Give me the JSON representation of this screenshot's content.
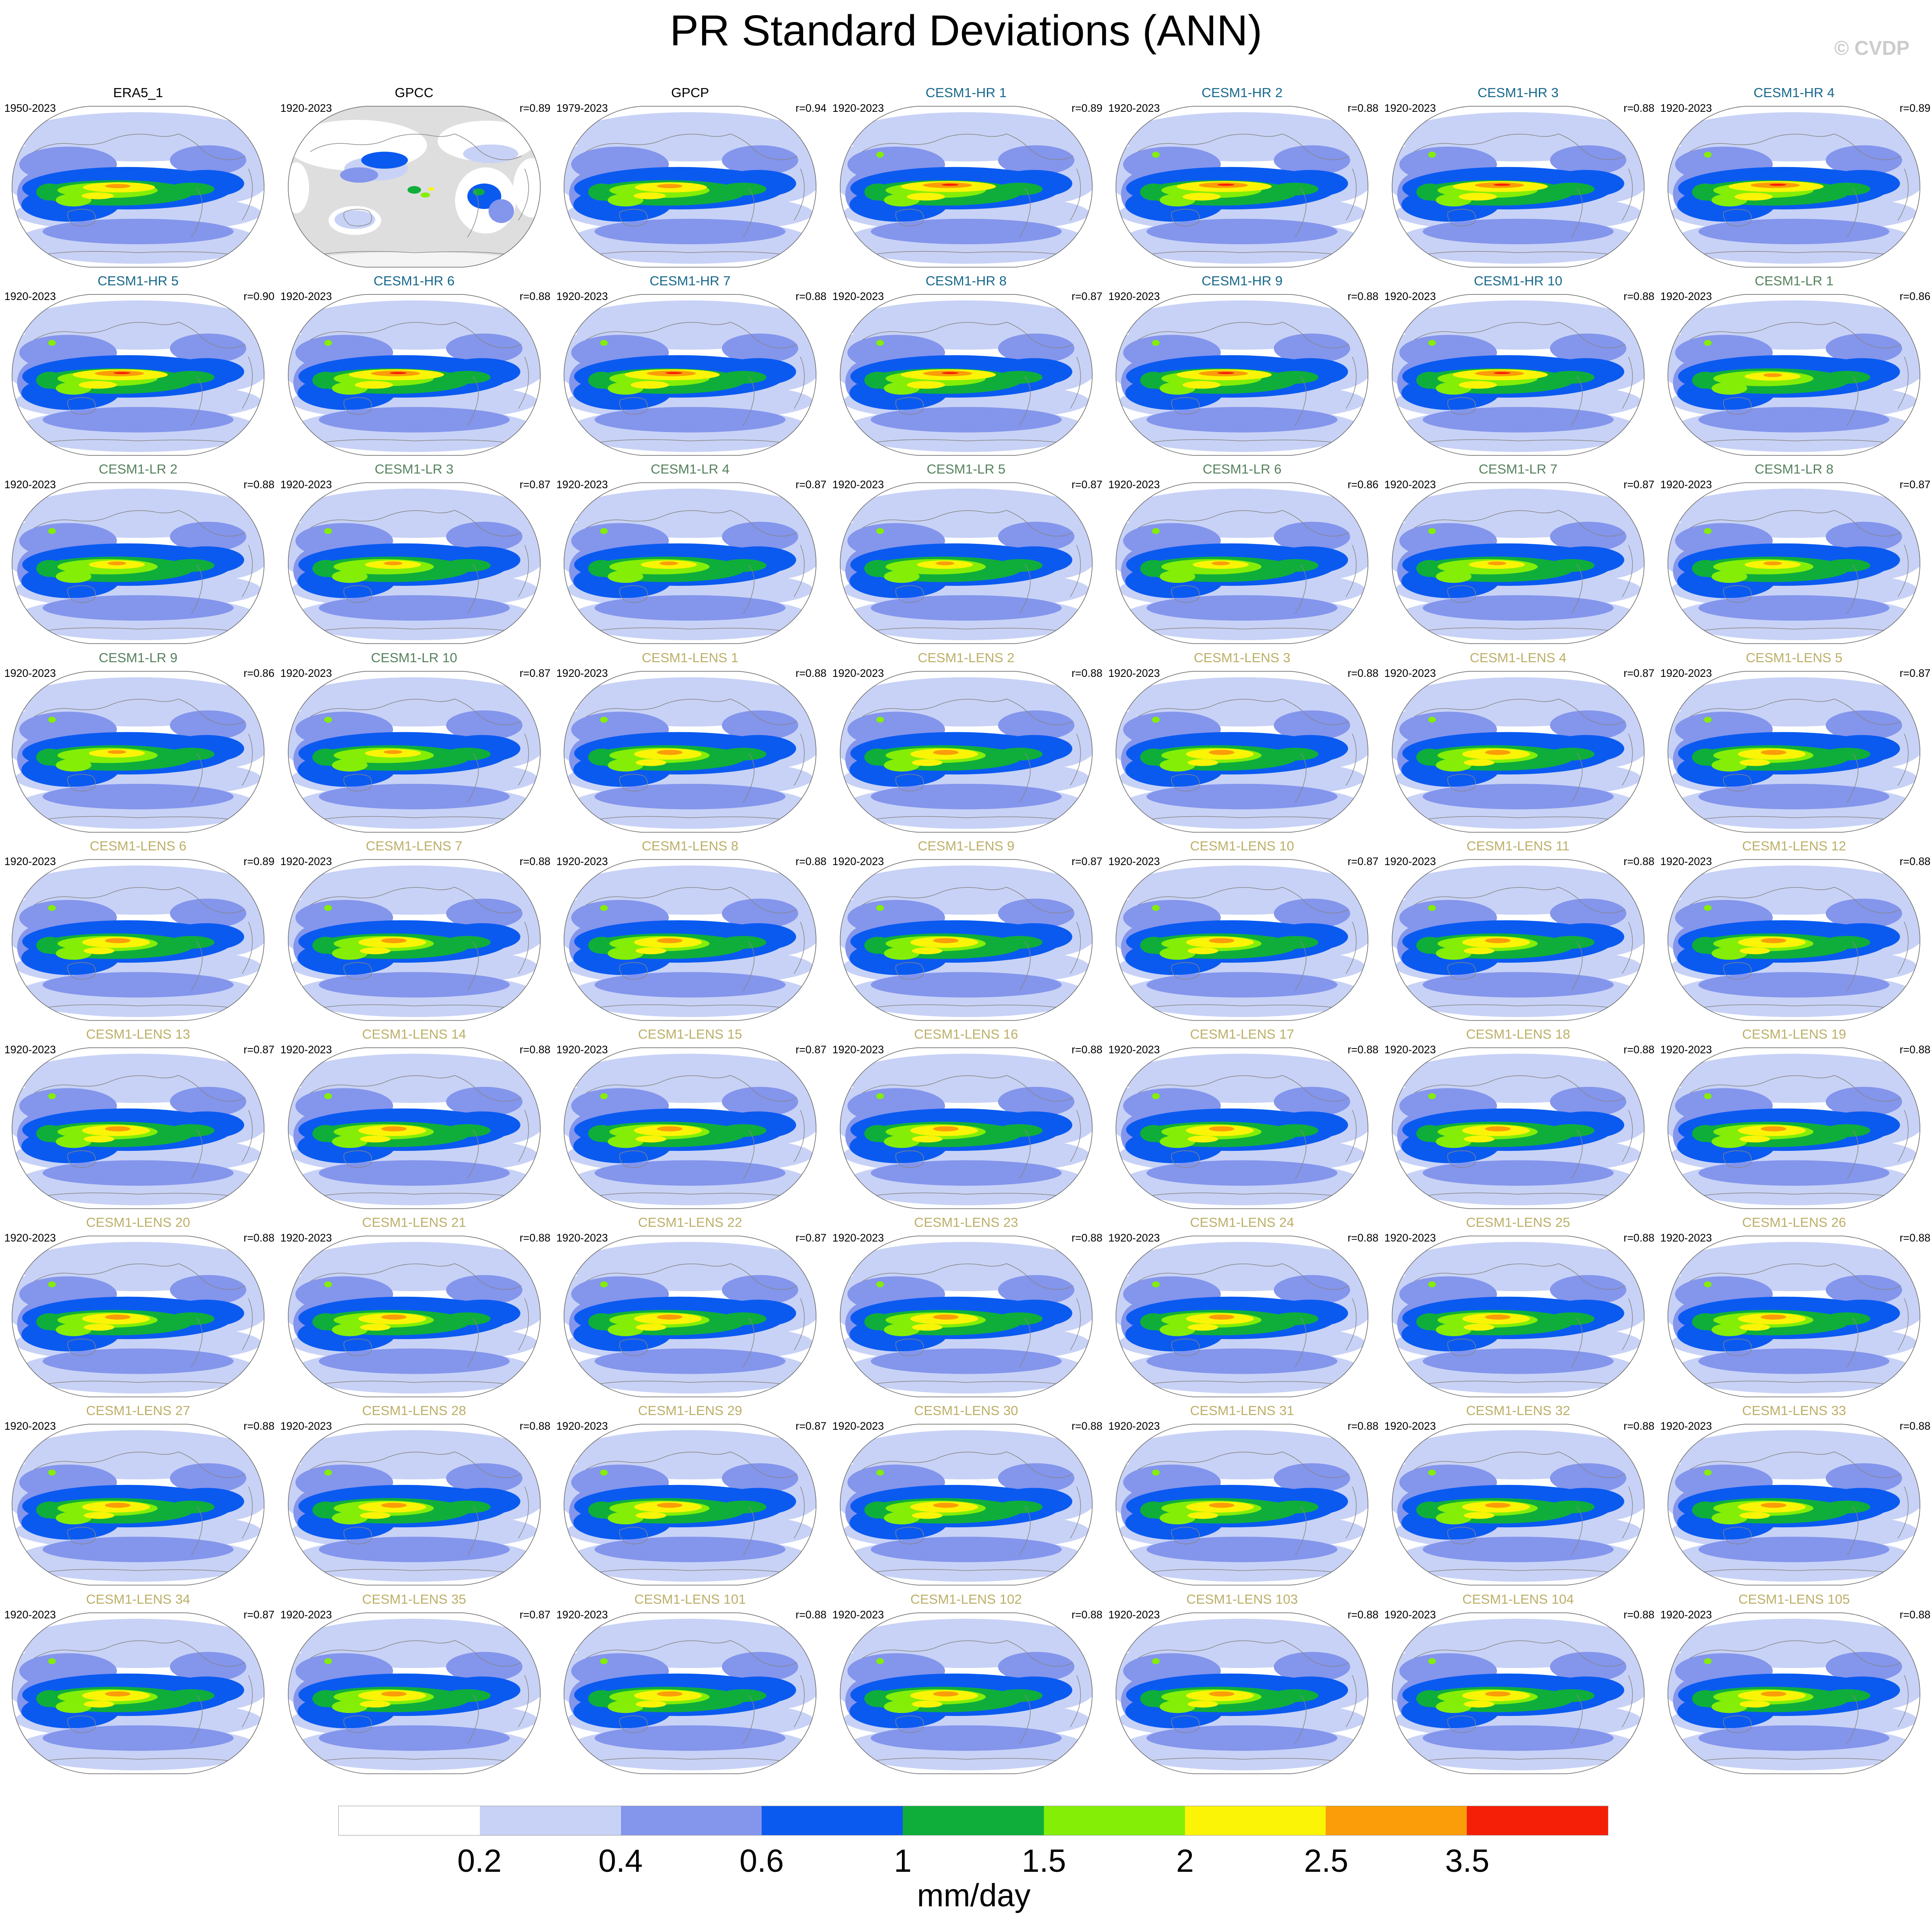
{
  "page": {
    "title": "PR Standard Deviations (ANN)",
    "watermark": "© CVDP"
  },
  "colorbar": {
    "unit": "mm/day",
    "tick_labels": [
      "0.2",
      "0.4",
      "0.6",
      "1",
      "1.5",
      "2",
      "2.5",
      "3.5"
    ],
    "colors": [
      "#FFFFFF",
      "#C8D2F6",
      "#8495EC",
      "#0A5AF0",
      "#0FAE3B",
      "#84EE07",
      "#FCF407",
      "#FB9D09",
      "#F51E07"
    ]
  },
  "title_colors": {
    "obs": "#000000",
    "gpcc": "#000000",
    "hr": "#17688C",
    "lr": "#55815D",
    "lens": "#BCAF68"
  },
  "chart_data": {
    "type": "heatmap",
    "title": "PR Standard Deviations (ANN)",
    "unit": "mm/day",
    "contour_levels_mm_day": [
      0.2,
      0.4,
      0.6,
      1,
      1.5,
      2,
      2.5,
      3.5
    ],
    "palette": [
      "#FFFFFF",
      "#C8D2F6",
      "#8495EC",
      "#0A5AF0",
      "#0FAE3B",
      "#84EE07",
      "#FCF407",
      "#FB9D09",
      "#F51E07"
    ],
    "legend_position": "bottom",
    "grid_rows": 9,
    "grid_cols": 7,
    "panels": [
      {
        "name": "ERA5_1",
        "period": "1950-2023",
        "r": null,
        "r_label": "",
        "style": "obs"
      },
      {
        "name": "GPCC",
        "period": "1920-2023",
        "r": 0.89,
        "r_label": "r=0.89",
        "style": "gpcc"
      },
      {
        "name": "GPCP",
        "period": "1979-2023",
        "r": 0.94,
        "r_label": "r=0.94",
        "style": "obs"
      },
      {
        "name": "CESM1-HR 1",
        "period": "1920-2023",
        "r": 0.89,
        "r_label": "r=0.89",
        "style": "hr"
      },
      {
        "name": "CESM1-HR 2",
        "period": "1920-2023",
        "r": 0.88,
        "r_label": "r=0.88",
        "style": "hr"
      },
      {
        "name": "CESM1-HR 3",
        "period": "1920-2023",
        "r": 0.88,
        "r_label": "r=0.88",
        "style": "hr"
      },
      {
        "name": "CESM1-HR 4",
        "period": "1920-2023",
        "r": 0.89,
        "r_label": "r=0.89",
        "style": "hr"
      },
      {
        "name": "CESM1-HR 5",
        "period": "1920-2023",
        "r": 0.9,
        "r_label": "r=0.90",
        "style": "hr"
      },
      {
        "name": "CESM1-HR 6",
        "period": "1920-2023",
        "r": 0.88,
        "r_label": "r=0.88",
        "style": "hr"
      },
      {
        "name": "CESM1-HR 7",
        "period": "1920-2023",
        "r": 0.88,
        "r_label": "r=0.88",
        "style": "hr"
      },
      {
        "name": "CESM1-HR 8",
        "period": "1920-2023",
        "r": 0.87,
        "r_label": "r=0.87",
        "style": "hr"
      },
      {
        "name": "CESM1-HR 9",
        "period": "1920-2023",
        "r": 0.88,
        "r_label": "r=0.88",
        "style": "hr"
      },
      {
        "name": "CESM1-HR 10",
        "period": "1920-2023",
        "r": 0.88,
        "r_label": "r=0.88",
        "style": "hr"
      },
      {
        "name": "CESM1-LR 1",
        "period": "1920-2023",
        "r": 0.86,
        "r_label": "r=0.86",
        "style": "lr"
      },
      {
        "name": "CESM1-LR 2",
        "period": "1920-2023",
        "r": 0.88,
        "r_label": "r=0.88",
        "style": "lr"
      },
      {
        "name": "CESM1-LR 3",
        "period": "1920-2023",
        "r": 0.87,
        "r_label": "r=0.87",
        "style": "lr"
      },
      {
        "name": "CESM1-LR 4",
        "period": "1920-2023",
        "r": 0.87,
        "r_label": "r=0.87",
        "style": "lr"
      },
      {
        "name": "CESM1-LR 5",
        "period": "1920-2023",
        "r": 0.87,
        "r_label": "r=0.87",
        "style": "lr"
      },
      {
        "name": "CESM1-LR 6",
        "period": "1920-2023",
        "r": 0.86,
        "r_label": "r=0.86",
        "style": "lr"
      },
      {
        "name": "CESM1-LR 7",
        "period": "1920-2023",
        "r": 0.87,
        "r_label": "r=0.87",
        "style": "lr"
      },
      {
        "name": "CESM1-LR 8",
        "period": "1920-2023",
        "r": 0.87,
        "r_label": "r=0.87",
        "style": "lr"
      },
      {
        "name": "CESM1-LR 9",
        "period": "1920-2023",
        "r": 0.86,
        "r_label": "r=0.86",
        "style": "lr"
      },
      {
        "name": "CESM1-LR 10",
        "period": "1920-2023",
        "r": 0.87,
        "r_label": "r=0.87",
        "style": "lr"
      },
      {
        "name": "CESM1-LENS 1",
        "period": "1920-2023",
        "r": 0.88,
        "r_label": "r=0.88",
        "style": "lens"
      },
      {
        "name": "CESM1-LENS 2",
        "period": "1920-2023",
        "r": 0.88,
        "r_label": "r=0.88",
        "style": "lens"
      },
      {
        "name": "CESM1-LENS 3",
        "period": "1920-2023",
        "r": 0.88,
        "r_label": "r=0.88",
        "style": "lens"
      },
      {
        "name": "CESM1-LENS 4",
        "period": "1920-2023",
        "r": 0.87,
        "r_label": "r=0.87",
        "style": "lens"
      },
      {
        "name": "CESM1-LENS 5",
        "period": "1920-2023",
        "r": 0.87,
        "r_label": "r=0.87",
        "style": "lens"
      },
      {
        "name": "CESM1-LENS 6",
        "period": "1920-2023",
        "r": 0.89,
        "r_label": "r=0.89",
        "style": "lens"
      },
      {
        "name": "CESM1-LENS 7",
        "period": "1920-2023",
        "r": 0.88,
        "r_label": "r=0.88",
        "style": "lens"
      },
      {
        "name": "CESM1-LENS 8",
        "period": "1920-2023",
        "r": 0.88,
        "r_label": "r=0.88",
        "style": "lens"
      },
      {
        "name": "CESM1-LENS 9",
        "period": "1920-2023",
        "r": 0.87,
        "r_label": "r=0.87",
        "style": "lens"
      },
      {
        "name": "CESM1-LENS 10",
        "period": "1920-2023",
        "r": 0.87,
        "r_label": "r=0.87",
        "style": "lens"
      },
      {
        "name": "CESM1-LENS 11",
        "period": "1920-2023",
        "r": 0.88,
        "r_label": "r=0.88",
        "style": "lens"
      },
      {
        "name": "CESM1-LENS 12",
        "period": "1920-2023",
        "r": 0.88,
        "r_label": "r=0.88",
        "style": "lens"
      },
      {
        "name": "CESM1-LENS 13",
        "period": "1920-2023",
        "r": 0.87,
        "r_label": "r=0.87",
        "style": "lens"
      },
      {
        "name": "CESM1-LENS 14",
        "period": "1920-2023",
        "r": 0.88,
        "r_label": "r=0.88",
        "style": "lens"
      },
      {
        "name": "CESM1-LENS 15",
        "period": "1920-2023",
        "r": 0.87,
        "r_label": "r=0.87",
        "style": "lens"
      },
      {
        "name": "CESM1-LENS 16",
        "period": "1920-2023",
        "r": 0.88,
        "r_label": "r=0.88",
        "style": "lens"
      },
      {
        "name": "CESM1-LENS 17",
        "period": "1920-2023",
        "r": 0.88,
        "r_label": "r=0.88",
        "style": "lens"
      },
      {
        "name": "CESM1-LENS 18",
        "period": "1920-2023",
        "r": 0.88,
        "r_label": "r=0.88",
        "style": "lens"
      },
      {
        "name": "CESM1-LENS 19",
        "period": "1920-2023",
        "r": 0.88,
        "r_label": "r=0.88",
        "style": "lens"
      },
      {
        "name": "CESM1-LENS 20",
        "period": "1920-2023",
        "r": 0.88,
        "r_label": "r=0.88",
        "style": "lens"
      },
      {
        "name": "CESM1-LENS 21",
        "period": "1920-2023",
        "r": 0.88,
        "r_label": "r=0.88",
        "style": "lens"
      },
      {
        "name": "CESM1-LENS 22",
        "period": "1920-2023",
        "r": 0.87,
        "r_label": "r=0.87",
        "style": "lens"
      },
      {
        "name": "CESM1-LENS 23",
        "period": "1920-2023",
        "r": 0.88,
        "r_label": "r=0.88",
        "style": "lens"
      },
      {
        "name": "CESM1-LENS 24",
        "period": "1920-2023",
        "r": 0.88,
        "r_label": "r=0.88",
        "style": "lens"
      },
      {
        "name": "CESM1-LENS 25",
        "period": "1920-2023",
        "r": 0.88,
        "r_label": "r=0.88",
        "style": "lens"
      },
      {
        "name": "CESM1-LENS 26",
        "period": "1920-2023",
        "r": 0.88,
        "r_label": "r=0.88",
        "style": "lens"
      },
      {
        "name": "CESM1-LENS 27",
        "period": "1920-2023",
        "r": 0.88,
        "r_label": "r=0.88",
        "style": "lens"
      },
      {
        "name": "CESM1-LENS 28",
        "period": "1920-2023",
        "r": 0.88,
        "r_label": "r=0.88",
        "style": "lens"
      },
      {
        "name": "CESM1-LENS 29",
        "period": "1920-2023",
        "r": 0.87,
        "r_label": "r=0.87",
        "style": "lens"
      },
      {
        "name": "CESM1-LENS 30",
        "period": "1920-2023",
        "r": 0.88,
        "r_label": "r=0.88",
        "style": "lens"
      },
      {
        "name": "CESM1-LENS 31",
        "period": "1920-2023",
        "r": 0.88,
        "r_label": "r=0.88",
        "style": "lens"
      },
      {
        "name": "CESM1-LENS 32",
        "period": "1920-2023",
        "r": 0.88,
        "r_label": "r=0.88",
        "style": "lens"
      },
      {
        "name": "CESM1-LENS 33",
        "period": "1920-2023",
        "r": 0.88,
        "r_label": "r=0.88",
        "style": "lens"
      },
      {
        "name": "CESM1-LENS 34",
        "period": "1920-2023",
        "r": 0.87,
        "r_label": "r=0.87",
        "style": "lens"
      },
      {
        "name": "CESM1-LENS 35",
        "period": "1920-2023",
        "r": 0.87,
        "r_label": "r=0.87",
        "style": "lens"
      },
      {
        "name": "CESM1-LENS 101",
        "period": "1920-2023",
        "r": 0.88,
        "r_label": "r=0.88",
        "style": "lens"
      },
      {
        "name": "CESM1-LENS 102",
        "period": "1920-2023",
        "r": 0.88,
        "r_label": "r=0.88",
        "style": "lens"
      },
      {
        "name": "CESM1-LENS 103",
        "period": "1920-2023",
        "r": 0.88,
        "r_label": "r=0.88",
        "style": "lens"
      },
      {
        "name": "CESM1-LENS 104",
        "period": "1920-2023",
        "r": 0.88,
        "r_label": "r=0.88",
        "style": "lens"
      },
      {
        "name": "CESM1-LENS 105",
        "period": "1920-2023",
        "r": 0.88,
        "r_label": "r=0.88",
        "style": "lens"
      }
    ]
  }
}
